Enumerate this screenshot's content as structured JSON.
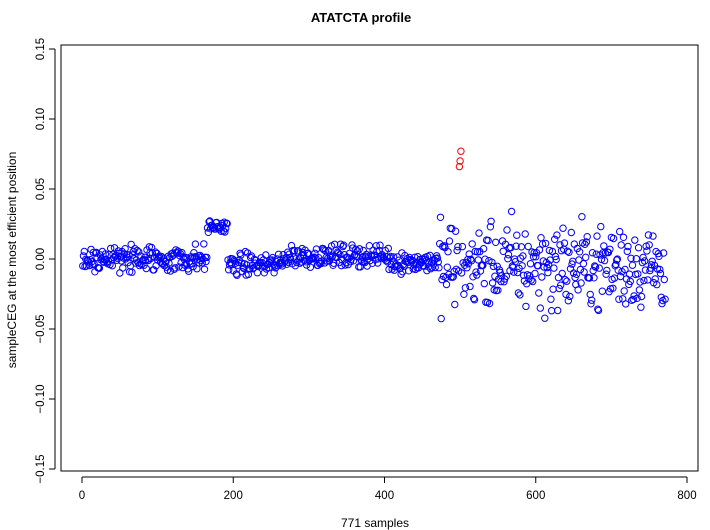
{
  "chart_data": {
    "type": "scatter",
    "title": "ATATCTA profile",
    "xlabel": "771 samples",
    "ylabel": "sampleCEG at the most efficient position",
    "n_samples": 771,
    "xlim": [
      -30,
      800
    ],
    "ylim": [
      -0.15,
      0.15
    ],
    "x_ticks": [
      0,
      200,
      400,
      600,
      800
    ],
    "y_ticks": [
      -0.15,
      -0.1,
      -0.05,
      0.0,
      0.05,
      0.1,
      0.15
    ],
    "x_tick_labels": [
      "0",
      "200",
      "400",
      "600",
      "800"
    ],
    "y_tick_labels": [
      "−0.15",
      "−0.10",
      "−0.05",
      "0.00",
      "0.05",
      "0.10",
      "0.15"
    ],
    "marker": "open circle",
    "grid": false,
    "legend": "none",
    "colors": {
      "normal": "#0000ff",
      "highlight": "#ff0000"
    },
    "highlighted_points": [
      {
        "x": 499,
        "y": 0.066
      },
      {
        "x": 500,
        "y": 0.07
      },
      {
        "x": 501,
        "y": 0.077
      }
    ],
    "segments": [
      {
        "x_start": 0,
        "x_end": 165,
        "center": 0.0,
        "spread": 0.009
      },
      {
        "x_start": 166,
        "x_end": 192,
        "center": 0.023,
        "spread": 0.004
      },
      {
        "x_start": 193,
        "x_end": 265,
        "center": -0.004,
        "spread": 0.007
      },
      {
        "x_start": 266,
        "x_end": 405,
        "center": 0.002,
        "spread": 0.007
      },
      {
        "x_start": 406,
        "x_end": 470,
        "center": -0.002,
        "spread": 0.007
      },
      {
        "x_start": 471,
        "x_end": 771,
        "center": -0.005,
        "spread": 0.028
      }
    ]
  }
}
